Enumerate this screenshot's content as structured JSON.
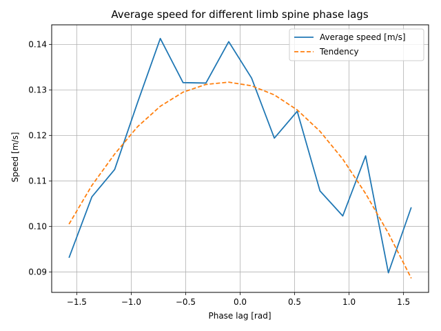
{
  "chart_data": {
    "type": "line",
    "title": "Average speed for different limb spine phase lags",
    "xlabel": "Phase lag [rad]",
    "ylabel": "Speed [m/s]",
    "xlim": [
      -1.73,
      1.73
    ],
    "ylim": [
      0.0855,
      0.1443
    ],
    "grid": true,
    "legend_position": "top-right",
    "x_ticks": [
      -1.5,
      -1.0,
      -0.5,
      0.0,
      0.5,
      1.0,
      1.5
    ],
    "x_tick_labels": [
      "−1.5",
      "−1.0",
      "−0.5",
      "0.0",
      "0.5",
      "1.0",
      "1.5"
    ],
    "y_ticks": [
      0.09,
      0.1,
      0.11,
      0.12,
      0.13,
      0.14
    ],
    "y_tick_labels": [
      "0.09",
      "0.10",
      "0.11",
      "0.12",
      "0.13",
      "0.14"
    ],
    "x": [
      -1.571,
      -1.361,
      -1.152,
      -0.942,
      -0.733,
      -0.524,
      -0.314,
      -0.105,
      0.105,
      0.314,
      0.524,
      0.733,
      0.942,
      1.152,
      1.361,
      1.571
    ],
    "series": [
      {
        "name": "Average speed [m/s]",
        "style": "solid",
        "color": "#1f77b4",
        "values": [
          0.0931,
          0.1065,
          0.1125,
          0.1272,
          0.1413,
          0.1316,
          0.1315,
          0.1406,
          0.1326,
          0.1194,
          0.1253,
          0.1078,
          0.1023,
          0.1155,
          0.0898,
          0.1042
        ]
      },
      {
        "name": "Tendency",
        "style": "dashed",
        "color": "#ff7f0e",
        "values": [
          0.1005,
          0.109,
          0.1159,
          0.1219,
          0.1264,
          0.1295,
          0.1312,
          0.1317,
          0.1309,
          0.1289,
          0.1256,
          0.1209,
          0.1148,
          0.1072,
          0.0985,
          0.0886
        ]
      }
    ]
  }
}
